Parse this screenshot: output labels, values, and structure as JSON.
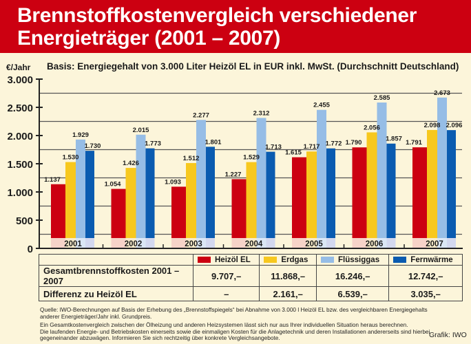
{
  "header": {
    "title_line1": "Brennstoffkostenvergleich verschiedener",
    "title_line2": "Energieträger (2001 – 2007)"
  },
  "unit_label": "€/Jahr",
  "subtitle": "Basis: Energiegehalt von 3.000 Liter Heizöl EL in EUR inkl. MwSt. (Durchschnitt Deutschland)",
  "colors": {
    "header_bg": "#cc0011",
    "background": "#fcf5da",
    "heizoel": "#cc0011",
    "erdgas": "#f7c81e",
    "fluessiggas": "#96bde6",
    "fernwaerme": "#0a5bb0"
  },
  "chart_data": {
    "type": "bar",
    "title": "Brennstoffkostenvergleich verschiedener Energieträger (2001 – 2007)",
    "xlabel": "",
    "ylabel": "€/Jahr",
    "ylim": [
      0,
      3000
    ],
    "yticks": [
      0,
      500,
      1000,
      1500,
      2000,
      2500,
      3000
    ],
    "ytick_labels": [
      "0",
      "500",
      "1.000",
      "1.500",
      "2.000",
      "2.500",
      "3.000"
    ],
    "grid": true,
    "legend": "bottom",
    "categories": [
      "2001",
      "2002",
      "2003",
      "2004",
      "2005",
      "2006",
      "2007"
    ],
    "series": [
      {
        "name": "Heizöl EL",
        "color": "#cc0011",
        "values": [
          1137,
          1054,
          1093,
          1227,
          1615,
          1790,
          1791
        ],
        "labels": [
          "1.137",
          "1.054",
          "1.093",
          "1.227",
          "1.615",
          "1.790",
          "1.791"
        ]
      },
      {
        "name": "Erdgas",
        "color": "#f7c81e",
        "values": [
          1530,
          1426,
          1512,
          1529,
          1717,
          2056,
          2098
        ],
        "labels": [
          "1.530",
          "1.426",
          "1.512",
          "1.529",
          "1.717",
          "2.056",
          "2.098"
        ]
      },
      {
        "name": "Flüssiggas",
        "color": "#96bde6",
        "values": [
          1929,
          2015,
          2277,
          2312,
          2455,
          2585,
          2673
        ],
        "labels": [
          "1.929",
          "2.015",
          "2.277",
          "2.312",
          "2.455",
          "2.585",
          "2.673"
        ]
      },
      {
        "name": "Fernwärme",
        "color": "#0a5bb0",
        "values": [
          1730,
          1773,
          1801,
          1713,
          1772,
          1857,
          2096
        ],
        "labels": [
          "1.730",
          "1.773",
          "1.801",
          "1.713",
          "1.772",
          "1.857",
          "2.096"
        ]
      }
    ]
  },
  "table": {
    "row_labels": [
      "Gesamtbrennstoffkosten 2001 – 2007",
      "Differenz zu Heizöl EL"
    ],
    "columns": [
      {
        "name": "Heizöl EL",
        "total": "9.707,–",
        "diff": "–"
      },
      {
        "name": "Erdgas",
        "total": "11.868,–",
        "diff": "2.161,–"
      },
      {
        "name": "Flüssiggas",
        "total": "16.246,–",
        "diff": "6.539,–"
      },
      {
        "name": "Fernwärme",
        "total": "12.742,–",
        "diff": "3.035,–"
      }
    ]
  },
  "notes": {
    "source_line1": "Quelle: IWO-Berechnungen auf Basis der Erhebung des „Brennstoffspiegels“ bei Abnahme von 3.000 l Heizöl EL bzw. des vergleichbaren Energiegehalts",
    "source_line2": "anderer Energieträger/Jahr inkl. Grundpreis.",
    "info_line1": "Ein Gesamtkostenvergleich zwischen der Ölheizung und anderen Heizsystemen lässt sich nur aus Ihrer individuellen Situation heraus berechnen.",
    "info_line2": "Die laufenden Energie- und Betriebskosten einerseits sowie die einmaligen Kosten für die Anlagetechnik und deren Installationen andererseits sind hierbei",
    "info_line3": "gegeneinander abzuwägen. Informieren Sie sich rechtzeitig über konkrete Vergleichsangebote."
  },
  "credit": "Grafik: IWO"
}
